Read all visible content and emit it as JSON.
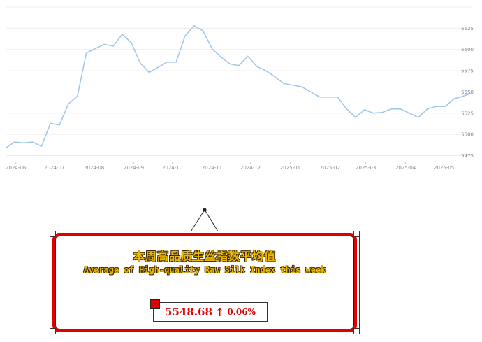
{
  "chart_data": {
    "type": "line",
    "x": [
      "2024-05-24",
      "2024-05-31",
      "2024-06-07",
      "2024-06-14",
      "2024-06-21",
      "2024-06-28",
      "2024-07-05",
      "2024-07-12",
      "2024-07-19",
      "2024-07-26",
      "2024-08-02",
      "2024-08-09",
      "2024-08-16",
      "2024-08-23",
      "2024-08-30",
      "2024-09-06",
      "2024-09-13",
      "2024-09-20",
      "2024-09-27",
      "2024-10-04",
      "2024-10-11",
      "2024-10-18",
      "2024-10-25",
      "2024-11-01",
      "2024-11-08",
      "2024-11-15",
      "2024-11-22",
      "2024-11-29",
      "2024-12-06",
      "2024-12-13",
      "2024-12-20",
      "2024-12-27",
      "2025-01-03",
      "2025-01-10",
      "2025-01-17",
      "2025-01-24",
      "2025-01-31",
      "2025-02-07",
      "2025-02-14",
      "2025-02-21",
      "2025-02-28",
      "2025-03-07",
      "2025-03-14",
      "2025-03-21",
      "2025-03-28",
      "2025-04-04",
      "2025-04-11",
      "2025-04-18",
      "2025-04-25",
      "2025-05-02",
      "2025-05-09",
      "2025-05-16",
      "2025-05-23"
    ],
    "series": [
      {
        "values": [
          5484,
          5491,
          5490,
          5491,
          5486,
          5513,
          5511,
          5536,
          5545,
          5596,
          5601,
          5606,
          5604,
          5618,
          5608,
          5584,
          5573,
          5579,
          5585,
          5585,
          5616,
          5628,
          5622,
          5601,
          5591,
          5583,
          5581,
          5592,
          5580,
          5575,
          5568,
          5560,
          5558,
          5556,
          5550,
          5544,
          5544,
          5544,
          5530,
          5520,
          5529,
          5525,
          5526,
          5530,
          5530,
          5525,
          5520,
          5530,
          5533,
          5533,
          5542,
          5545,
          5549
        ]
      }
    ],
    "x_ticks": [
      "2024-06",
      "2024-07",
      "2024-08",
      "2024-09",
      "2024-10",
      "2024-11",
      "2024-12",
      "2025-01",
      "2025-02",
      "2025-03",
      "2025-04",
      "2025-05"
    ],
    "x_tick_dates": [
      "2024-06-01",
      "2024-07-01",
      "2024-08-01",
      "2024-09-01",
      "2024-10-01",
      "2024-11-01",
      "2024-12-01",
      "2025-01-01",
      "2025-02-01",
      "2025-03-01",
      "2025-04-01",
      "2025-05-01"
    ],
    "y_ticks": [
      "5475",
      "5500",
      "5525",
      "5550",
      "5575",
      "5600",
      "5625"
    ],
    "ylim": [
      5468,
      5650
    ],
    "xlim": [
      "2024-05-24",
      "2025-05-23"
    ],
    "grid": true,
    "line_color": "#9ec5ea",
    "title": "",
    "xlabel": "",
    "ylabel": ""
  },
  "panel": {
    "title_cn": "本周高品质生丝指数平均值",
    "title_en": "Average of High-quality Raw Silk Index this week",
    "value": "5548.68",
    "arrow": "↑",
    "change": "0.06%",
    "accent_color": "#e00000",
    "title_color": "#f0b800"
  }
}
